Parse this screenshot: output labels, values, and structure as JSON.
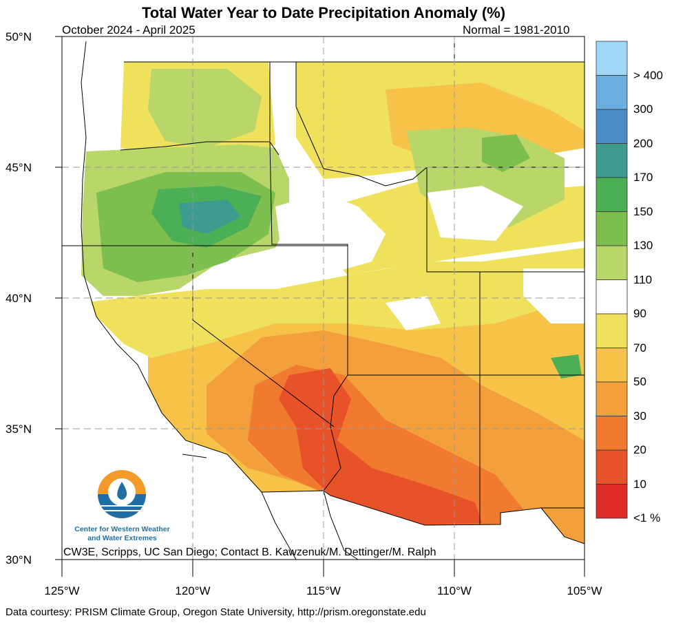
{
  "map": {
    "title": "Total Water Year to Date Precipitation Anomaly (%)",
    "period": "October 2024 - April 2025",
    "normal": "Normal = 1981-2010",
    "credit": "CW3E, Scripps, UC San Diego; Contact B. Kawzenuk/M. Dettinger/M. Ralph",
    "footer": "Data courtesy: PRISM Climate Group, Oregon State University, http://prism.oregonstate.edu",
    "logo_line1": "Center for Western Weather",
    "logo_line2": "and Water Extremes"
  },
  "axes": {
    "lat_labels": [
      "50°N",
      "45°N",
      "40°N",
      "35°N",
      "30°N"
    ],
    "lon_labels": [
      "125°W",
      "120°W",
      "115°W",
      "110°W",
      "105°W"
    ]
  },
  "colorbar": {
    "labels": [
      "> 400",
      "300",
      "200",
      "170",
      "150",
      "130",
      "110",
      "90",
      "70",
      "50",
      "30",
      "20",
      "10",
      "<1 %"
    ],
    "colors": [
      "#9dd7f5",
      "#6aaee0",
      "#4a8cc8",
      "#3d9c8e",
      "#4caf55",
      "#7cbf4f",
      "#b9d66a",
      "#ffffff",
      "#efe15c",
      "#f6c348",
      "#f3a03c",
      "#ef7a30",
      "#e85228",
      "#dd2b26"
    ]
  }
}
